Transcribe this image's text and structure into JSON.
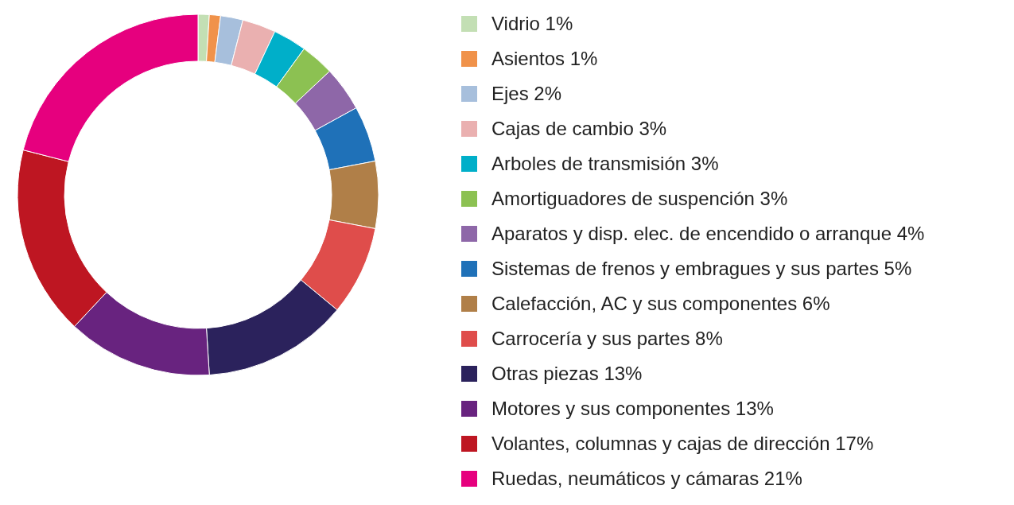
{
  "chart_data": {
    "type": "donut",
    "categories": [
      "Vidrio 1%",
      "Asientos 1%",
      "Ejes 2%",
      "Cajas de cambio 3%",
      "Arboles de transmisión 3%",
      "Amortiguadores de suspención 3%",
      "Aparatos y disp. elec. de encendido o arranque 4%",
      "Sistemas de frenos y embragues y sus partes 5%",
      "Calefacción, AC y sus componentes 6%",
      "Carrocería y sus partes 8%",
      "Otras piezas 13%",
      "Motores y sus componentes 13%",
      "Volantes, columnas y cajas de dirección 17%",
      "Ruedas, neumáticos y cámaras 21%"
    ],
    "values": [
      1,
      1,
      2,
      3,
      3,
      3,
      4,
      5,
      6,
      8,
      13,
      13,
      17,
      21
    ],
    "colors": [
      "#c3dfb4",
      "#f0924a",
      "#a7bfdc",
      "#eab0b0",
      "#00afc9",
      "#8cc152",
      "#8e67a8",
      "#1f71b8",
      "#b07f48",
      "#df4d4b",
      "#2b225c",
      "#68237f",
      "#be1622",
      "#e6007e"
    ],
    "legend": "right"
  }
}
